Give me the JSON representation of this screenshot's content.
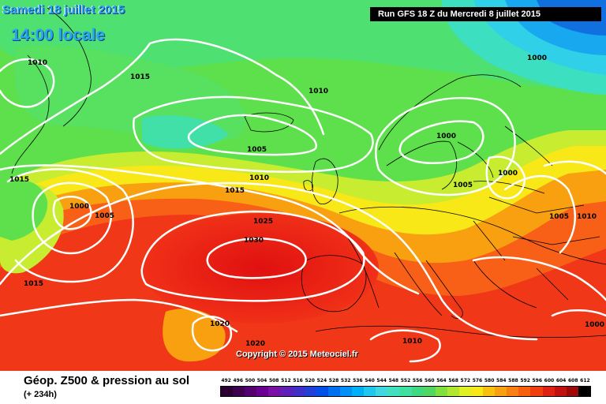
{
  "header": {
    "date_line": "Samedi 18 juillet 2015",
    "local_time": "14:00 locale",
    "run_info": "Run GFS 18 Z du Mercredi 8 juillet 2015"
  },
  "copyright": "Copyright © 2015 Meteociel.fr",
  "footer": {
    "title": "Géop. Z500 & pression au sol",
    "lead_time": "(+ 234h)"
  },
  "legend": {
    "labels": [
      "492",
      "496",
      "500",
      "504",
      "508",
      "512",
      "516",
      "520",
      "524",
      "528",
      "532",
      "536",
      "540",
      "544",
      "548",
      "552",
      "556",
      "560",
      "564",
      "568",
      "572",
      "576",
      "580",
      "584",
      "588",
      "592",
      "596",
      "600",
      "604",
      "608",
      "612"
    ],
    "colors": [
      "#2a0030",
      "#3e0050",
      "#550070",
      "#6a0090",
      "#7a10a8",
      "#6020b8",
      "#4030c8",
      "#2040d8",
      "#0050e8",
      "#0070f0",
      "#0090f8",
      "#00b0f8",
      "#20c8f0",
      "#40d8e0",
      "#40e0c0",
      "#40e0a0",
      "#40d880",
      "#50d860",
      "#80e040",
      "#b0e830",
      "#e0f020",
      "#f8e818",
      "#f8c010",
      "#f8a010",
      "#f88010",
      "#f86010",
      "#f04010",
      "#e02010",
      "#c01010",
      "#a00808",
      "#000000"
    ]
  },
  "isobars": [
    {
      "value": "1010",
      "label": "1010"
    },
    {
      "value": "1015",
      "label": "1015"
    },
    {
      "value": "1010",
      "label": "1010"
    },
    {
      "value": "1000",
      "label": "1000"
    },
    {
      "value": "1005",
      "label": "1005"
    },
    {
      "value": "1000",
      "label": "1000"
    },
    {
      "value": "1000",
      "label": "1000"
    },
    {
      "value": "1005",
      "label": "1005"
    },
    {
      "value": "1015",
      "label": "1015"
    },
    {
      "value": "1010",
      "label": "1010"
    },
    {
      "value": "1015",
      "label": "1015"
    },
    {
      "value": "1000",
      "label": "1000"
    },
    {
      "value": "1005",
      "label": "1005"
    },
    {
      "value": "1025",
      "label": "1025"
    },
    {
      "value": "1030",
      "label": "1030"
    },
    {
      "value": "1005",
      "label": "1005"
    },
    {
      "value": "1010",
      "label": "1010"
    },
    {
      "value": "1015",
      "label": "1015"
    },
    {
      "value": "1020",
      "label": "1020"
    },
    {
      "value": "1020",
      "label": "1020"
    },
    {
      "value": "1010",
      "label": "1010"
    },
    {
      "value": "1000",
      "label": "1000"
    }
  ]
}
